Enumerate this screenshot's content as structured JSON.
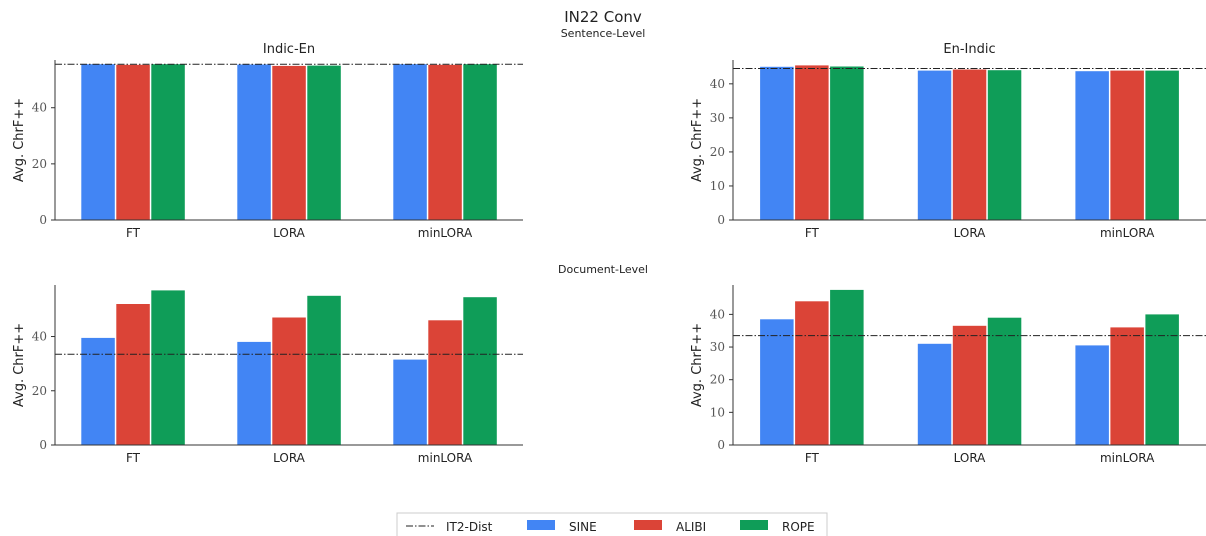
{
  "figure": {
    "title": "IN22 Conv",
    "row_titles": [
      "Sentence-Level",
      "Document-Level"
    ]
  },
  "legend": {
    "items": [
      {
        "label": "IT2-Dist",
        "kind": "line",
        "color": "#222222"
      },
      {
        "label": "SINE",
        "kind": "patch",
        "color": "#4285f4"
      },
      {
        "label": "ALIBI",
        "kind": "patch",
        "color": "#db4437"
      },
      {
        "label": "ROPE",
        "kind": "patch",
        "color": "#0f9d58"
      }
    ]
  },
  "chart_data": [
    {
      "type": "bar",
      "title": "Indic-En",
      "row": "Sentence-Level",
      "categories": [
        "FT",
        "LORA",
        "minLORA"
      ],
      "ylabel": "Avg. ChrF++",
      "ylim": [
        0,
        57
      ],
      "yticks": [
        0,
        20,
        40
      ],
      "baseline": {
        "name": "IT2-Dist",
        "value": 55.5
      },
      "series": [
        {
          "name": "SINE",
          "values": [
            55.5,
            55.4,
            55.5
          ]
        },
        {
          "name": "ALIBI",
          "values": [
            55.3,
            54.9,
            55.3
          ]
        },
        {
          "name": "ROPE",
          "values": [
            55.5,
            55.0,
            55.5
          ]
        }
      ]
    },
    {
      "type": "bar",
      "title": "En-Indic",
      "row": "Sentence-Level",
      "categories": [
        "FT",
        "LORA",
        "minLORA"
      ],
      "ylabel": "Avg. ChrF++",
      "ylim": [
        0,
        47
      ],
      "yticks": [
        0,
        10,
        20,
        30,
        40
      ],
      "baseline": {
        "name": "IT2-Dist",
        "value": 44.5
      },
      "series": [
        {
          "name": "SINE",
          "values": [
            45.0,
            43.9,
            43.7
          ]
        },
        {
          "name": "ALIBI",
          "values": [
            45.4,
            44.2,
            43.9
          ]
        },
        {
          "name": "ROPE",
          "values": [
            45.1,
            44.0,
            43.9
          ]
        }
      ]
    },
    {
      "type": "bar",
      "title": "",
      "row": "Document-Level",
      "categories": [
        "FT",
        "LORA",
        "minLORA"
      ],
      "ylabel": "Avg. ChrF++",
      "ylim": [
        0,
        59
      ],
      "yticks": [
        0,
        20,
        40
      ],
      "baseline": {
        "name": "IT2-Dist",
        "value": 33.5
      },
      "series": [
        {
          "name": "SINE",
          "values": [
            39.5,
            38.0,
            31.5
          ]
        },
        {
          "name": "ALIBI",
          "values": [
            52.0,
            47.0,
            46.0
          ]
        },
        {
          "name": "ROPE",
          "values": [
            57.0,
            55.0,
            54.5
          ]
        }
      ]
    },
    {
      "type": "bar",
      "title": "",
      "row": "Document-Level",
      "categories": [
        "FT",
        "LORA",
        "minLORA"
      ],
      "ylabel": "Avg. ChrF++",
      "ylim": [
        0,
        49
      ],
      "yticks": [
        0,
        10,
        20,
        30,
        40
      ],
      "baseline": {
        "name": "IT2-Dist",
        "value": 33.5
      },
      "series": [
        {
          "name": "SINE",
          "values": [
            38.5,
            31.0,
            30.5
          ]
        },
        {
          "name": "ALIBI",
          "values": [
            44.0,
            36.5,
            36.0
          ]
        },
        {
          "name": "ROPE",
          "values": [
            47.5,
            39.0,
            40.0
          ]
        }
      ]
    }
  ]
}
